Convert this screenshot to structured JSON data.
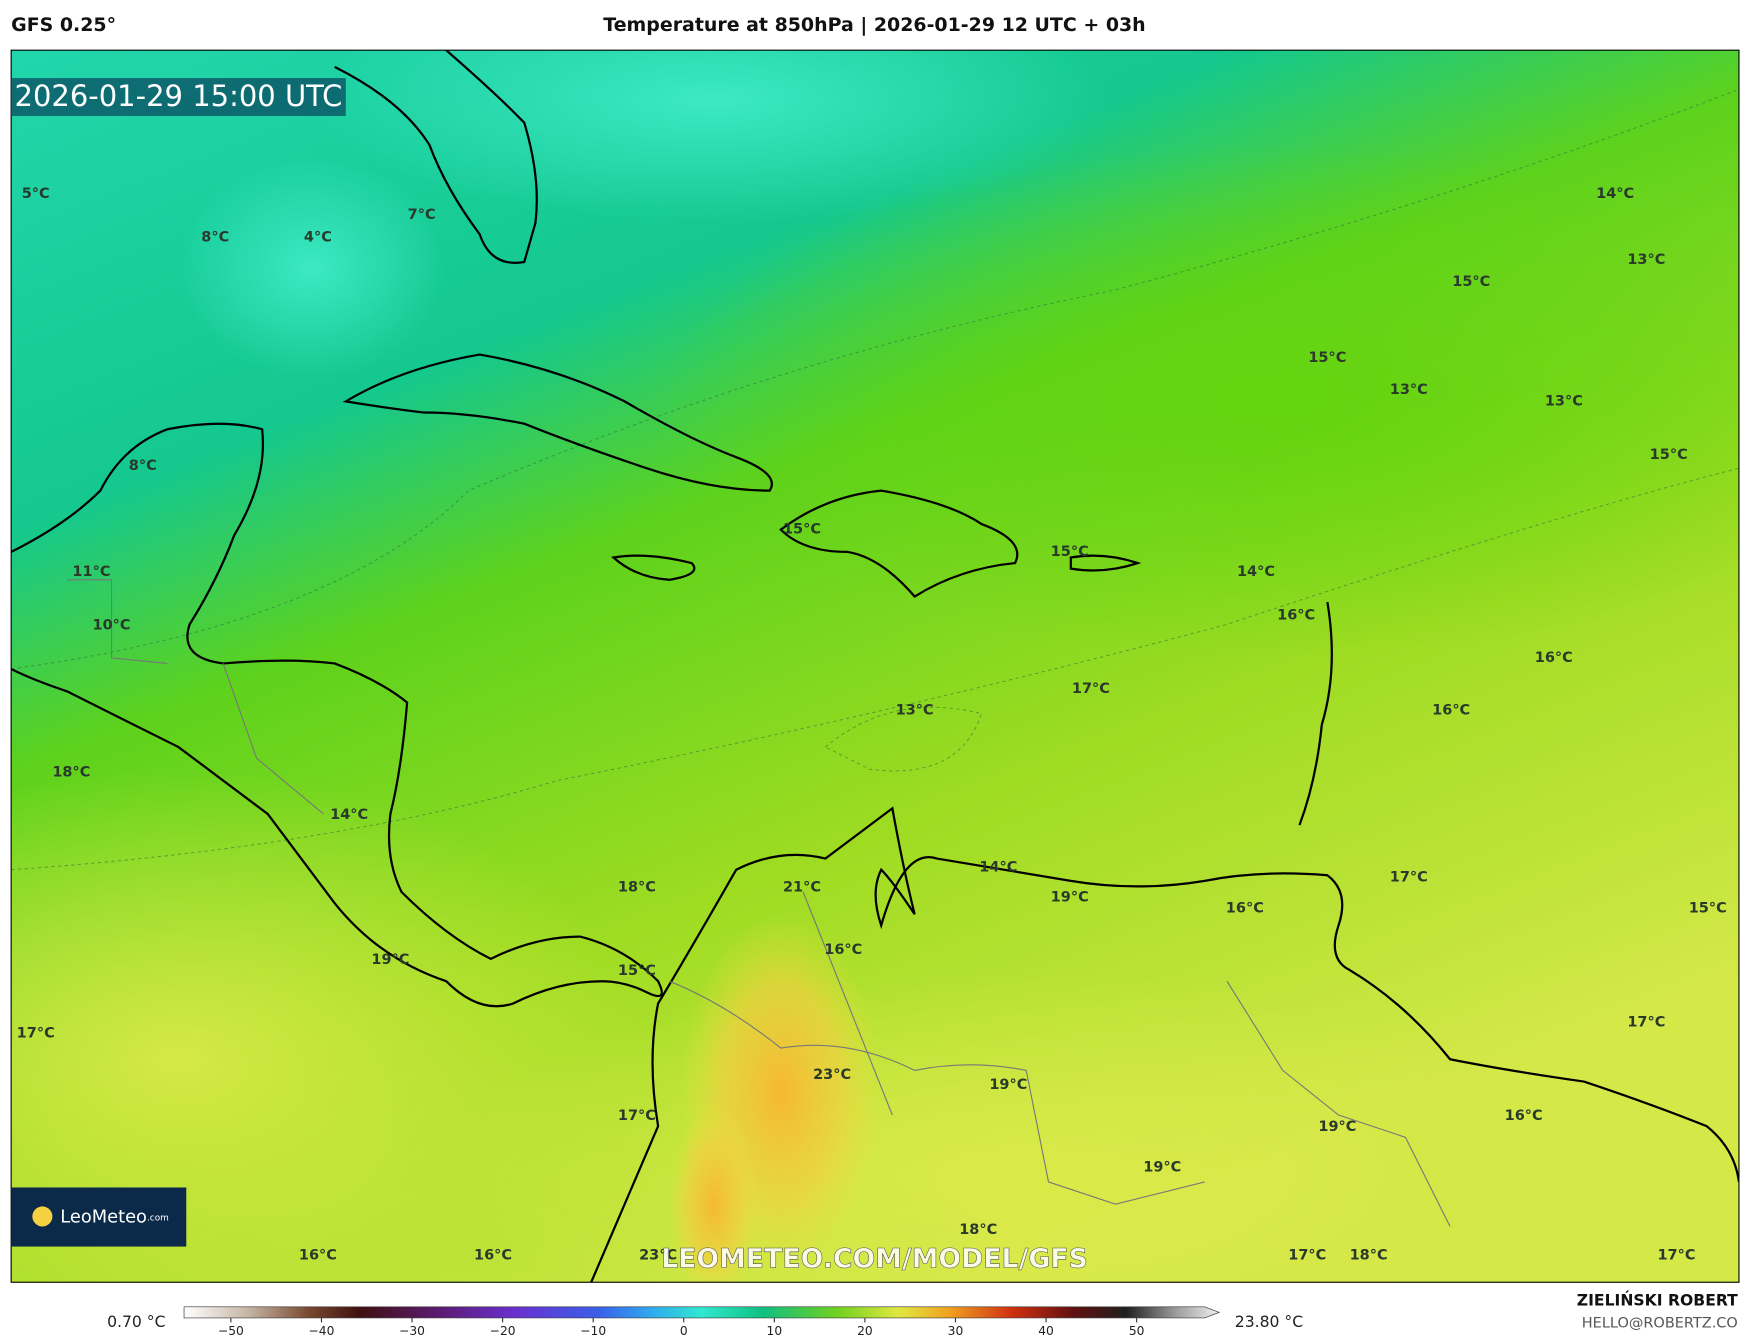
{
  "header": {
    "model": "GFS 0.25°",
    "title": "Temperature at 850hPa | 2026-01-29 12 UTC + 03h"
  },
  "map": {
    "valid_time": "2026-01-29 15:00 UTC",
    "labels": [
      "5°C",
      "8°C",
      "4°C",
      "7°C",
      "14°C",
      "13°C",
      "15°C",
      "15°C",
      "13°C",
      "13°C",
      "15°C",
      "8°C",
      "15°C",
      "15°C",
      "14°C",
      "11°C",
      "16°C",
      "10°C",
      "16°C",
      "17°C",
      "13°C",
      "16°C",
      "18°C",
      "14°C",
      "14°C",
      "17°C",
      "18°C",
      "21°C",
      "19°C",
      "16°C",
      "15°C",
      "16°C",
      "19°C",
      "15°C",
      "17°C",
      "17°C",
      "23°C",
      "19°C",
      "16°C",
      "17°C",
      "19°C",
      "19°C",
      "18°C",
      "16°C",
      "16°C",
      "23°C",
      "17°C",
      "18°C",
      "17°C"
    ],
    "watermark": "LEOMETEO.COM/MODEL/GFS",
    "logo": {
      "name": "LeoMeteo",
      "suffix": ".com"
    }
  },
  "colorbar": {
    "min_label": "0.70 °C",
    "max_label": "23.80 °C",
    "ticks": [
      {
        "value": -50,
        "label": "−50"
      },
      {
        "value": -40,
        "label": "−40"
      },
      {
        "value": -30,
        "label": "−30"
      },
      {
        "value": -20,
        "label": "−20"
      },
      {
        "value": -10,
        "label": "−10"
      },
      0,
      10,
      20,
      30,
      40,
      50
    ]
  },
  "footer": {
    "author": "ZIELIŃSKI ROBERT",
    "contact": "HELLO@ROBERTZ.CO"
  }
}
